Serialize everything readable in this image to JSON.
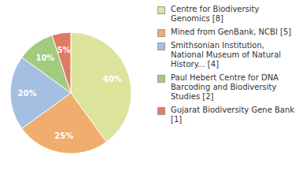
{
  "chart_data": {
    "type": "pie",
    "categories": [
      "Centre for Biodiversity Genomics [8]",
      "Mined from GenBank, NCBI [5]",
      "Smithsonian Institution, National Museum of Natural History... [4]",
      "Paul Hebert Centre for DNA Barcoding and Biodiversity Studies [2]",
      "Gujarat Biodiversity Gene Bank [1]"
    ],
    "values": [
      40,
      25,
      20,
      10,
      5
    ],
    "value_labels": [
      "40%",
      "25%",
      "20%",
      "10%",
      "5%"
    ],
    "colors": [
      "#dce39b",
      "#f0ad6e",
      "#a5bfe2",
      "#a2cb7e",
      "#e07b63"
    ],
    "data_labels": true,
    "legend": "right"
  }
}
